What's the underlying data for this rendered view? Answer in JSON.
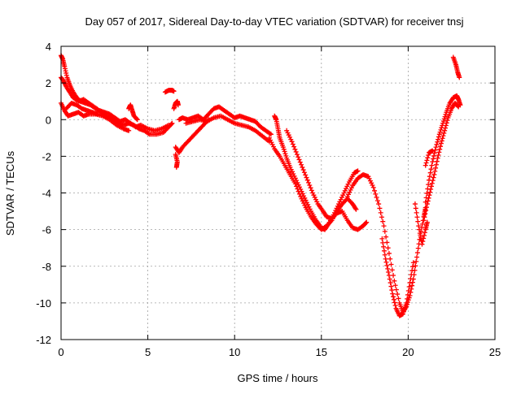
{
  "chart_data": {
    "type": "scatter",
    "title": "Day 057 of 2017, Sidereal Day-to-day VTEC variation (SDTVAR) for receiver tnsj",
    "xlabel": "GPS time / hours",
    "ylabel": "SDTVAR / TECUs",
    "xlim": [
      0,
      25
    ],
    "ylim": [
      -12,
      4
    ],
    "x_ticks": [
      0,
      5,
      10,
      15,
      20,
      25
    ],
    "y_ticks": [
      -12,
      -10,
      -8,
      -6,
      -4,
      -2,
      0,
      2,
      4
    ],
    "grid": true,
    "legend": "none",
    "marker": "+",
    "series_color": "#ff0000",
    "series": [
      {
        "tracks": [
          [
            [
              0.0,
              3.5
            ],
            [
              0.1,
              3.3
            ],
            [
              0.2,
              2.9
            ],
            [
              0.35,
              2.3
            ],
            [
              0.5,
              1.9
            ],
            [
              0.7,
              1.5
            ],
            [
              0.9,
              1.2
            ],
            [
              1.1,
              1.0
            ],
            [
              1.4,
              0.9
            ],
            [
              1.7,
              0.8
            ],
            [
              2.0,
              0.6
            ],
            [
              2.3,
              0.4
            ],
            [
              2.6,
              0.2
            ],
            [
              3.0,
              0.0
            ],
            [
              3.3,
              -0.2
            ],
            [
              3.6,
              -0.3
            ],
            [
              3.9,
              -0.2
            ],
            [
              4.2,
              -0.3
            ],
            [
              4.5,
              -0.5
            ],
            [
              4.8,
              -0.6
            ],
            [
              5.1,
              -0.8
            ],
            [
              5.5,
              -0.8
            ],
            [
              5.9,
              -0.7
            ],
            [
              6.2,
              -0.4
            ],
            [
              6.4,
              -0.2
            ]
          ],
          [
            [
              0.0,
              2.3
            ],
            [
              0.15,
              2.1
            ],
            [
              0.3,
              1.8
            ],
            [
              0.5,
              1.5
            ],
            [
              0.7,
              1.2
            ],
            [
              1.0,
              1.0
            ],
            [
              1.3,
              1.1
            ],
            [
              1.6,
              0.9
            ],
            [
              1.9,
              0.7
            ],
            [
              2.2,
              0.5
            ],
            [
              2.5,
              0.4
            ],
            [
              2.8,
              0.3
            ],
            [
              3.1,
              0.1
            ],
            [
              3.4,
              -0.1
            ],
            [
              3.7,
              0.0
            ],
            [
              4.0,
              -0.2
            ],
            [
              4.3,
              -0.4
            ],
            [
              4.6,
              -0.3
            ],
            [
              5.0,
              -0.5
            ],
            [
              5.4,
              -0.6
            ],
            [
              5.8,
              -0.5
            ],
            [
              6.2,
              -0.3
            ]
          ],
          [
            [
              0.0,
              0.9
            ],
            [
              0.2,
              0.5
            ],
            [
              0.4,
              0.2
            ],
            [
              0.7,
              0.3
            ],
            [
              1.0,
              0.4
            ],
            [
              1.3,
              0.2
            ],
            [
              1.6,
              0.3
            ],
            [
              2.0,
              0.3
            ],
            [
              2.4,
              0.2
            ],
            [
              2.8,
              0.0
            ],
            [
              3.2,
              -0.3
            ],
            [
              3.6,
              -0.5
            ],
            [
              3.9,
              -0.6
            ]
          ],
          [
            [
              0.3,
              0.6
            ],
            [
              0.6,
              0.9
            ],
            [
              0.9,
              0.8
            ],
            [
              1.2,
              0.6
            ],
            [
              1.5,
              0.5
            ],
            [
              1.8,
              0.4
            ],
            [
              2.1,
              0.3
            ]
          ],
          [
            [
              3.9,
              0.6
            ],
            [
              4.0,
              0.8
            ],
            [
              4.1,
              0.5
            ],
            [
              4.2,
              0.2
            ],
            [
              4.4,
              0.0
            ]
          ],
          [
            [
              6.0,
              1.5
            ],
            [
              6.2,
              1.6
            ],
            [
              6.4,
              1.6
            ],
            [
              6.5,
              1.55
            ]
          ],
          [
            [
              6.5,
              0.6
            ],
            [
              6.6,
              0.9
            ],
            [
              6.7,
              1.0
            ],
            [
              6.75,
              0.8
            ]
          ],
          [
            [
              6.6,
              -1.5
            ],
            [
              6.8,
              -1.8
            ],
            [
              7.0,
              -1.5
            ],
            [
              7.3,
              -1.2
            ],
            [
              7.6,
              -0.9
            ],
            [
              7.9,
              -0.6
            ],
            [
              8.2,
              -0.3
            ],
            [
              8.5,
              0.0
            ]
          ],
          [
            [
              6.6,
              -1.9
            ],
            [
              6.7,
              -2.3
            ],
            [
              6.65,
              -2.6
            ]
          ],
          [
            [
              6.8,
              0.0
            ],
            [
              7.0,
              0.1
            ],
            [
              7.3,
              0.0
            ],
            [
              7.6,
              0.1
            ],
            [
              7.9,
              0.2
            ],
            [
              8.2,
              0.0
            ],
            [
              8.5,
              0.3
            ],
            [
              8.8,
              0.6
            ],
            [
              9.1,
              0.7
            ],
            [
              9.4,
              0.5
            ],
            [
              9.7,
              0.3
            ],
            [
              10.0,
              0.1
            ],
            [
              10.3,
              0.2
            ],
            [
              10.6,
              0.1
            ],
            [
              10.9,
              0.0
            ],
            [
              11.2,
              -0.1
            ],
            [
              11.5,
              -0.4
            ],
            [
              11.8,
              -0.6
            ],
            [
              12.1,
              -0.8
            ]
          ],
          [
            [
              7.2,
              -0.2
            ],
            [
              7.6,
              -0.1
            ],
            [
              8.0,
              0.0
            ],
            [
              8.4,
              -0.1
            ],
            [
              8.8,
              0.1
            ],
            [
              9.2,
              0.2
            ],
            [
              9.6,
              0.0
            ],
            [
              10.0,
              -0.2
            ],
            [
              10.4,
              -0.3
            ],
            [
              10.8,
              -0.4
            ],
            [
              11.2,
              -0.6
            ],
            [
              11.6,
              -0.9
            ],
            [
              12.0,
              -1.2
            ]
          ],
          [
            [
              12.3,
              0.2
            ],
            [
              12.4,
              0.0
            ],
            [
              12.5,
              -0.5
            ],
            [
              12.6,
              -1.0
            ],
            [
              12.8,
              -1.5
            ],
            [
              13.0,
              -2.1
            ],
            [
              13.2,
              -2.6
            ],
            [
              13.5,
              -3.2
            ],
            [
              13.8,
              -3.8
            ],
            [
              14.1,
              -4.4
            ],
            [
              14.4,
              -5.0
            ],
            [
              14.7,
              -5.5
            ],
            [
              15.0,
              -5.9
            ],
            [
              15.2,
              -6.0
            ],
            [
              15.4,
              -5.7
            ],
            [
              15.7,
              -5.2
            ],
            [
              16.0,
              -4.6
            ],
            [
              16.3,
              -4.0
            ],
            [
              16.6,
              -3.4
            ],
            [
              16.9,
              -2.9
            ],
            [
              17.1,
              -2.8
            ]
          ],
          [
            [
              12.0,
              -1.0
            ],
            [
              12.3,
              -1.6
            ],
            [
              12.6,
              -2.0
            ],
            [
              12.9,
              -2.5
            ],
            [
              13.2,
              -3.0
            ],
            [
              13.5,
              -3.5
            ],
            [
              13.8,
              -4.2
            ],
            [
              14.1,
              -4.8
            ],
            [
              14.4,
              -5.3
            ],
            [
              14.7,
              -5.7
            ],
            [
              15.0,
              -6.0
            ],
            [
              15.3,
              -5.8
            ],
            [
              15.6,
              -5.5
            ],
            [
              15.9,
              -5.0
            ],
            [
              16.2,
              -4.6
            ],
            [
              16.5,
              -4.3
            ],
            [
              16.8,
              -4.6
            ],
            [
              17.0,
              -4.9
            ]
          ],
          [
            [
              13.0,
              -0.6
            ],
            [
              13.3,
              -1.2
            ],
            [
              13.6,
              -1.9
            ],
            [
              13.9,
              -2.6
            ],
            [
              14.2,
              -3.3
            ],
            [
              14.5,
              -4.0
            ],
            [
              14.8,
              -4.6
            ],
            [
              15.1,
              -5.0
            ],
            [
              15.3,
              -5.3
            ],
            [
              15.6,
              -5.4
            ],
            [
              15.9,
              -5.1
            ],
            [
              16.2,
              -5.0
            ],
            [
              16.5,
              -5.5
            ],
            [
              16.8,
              -5.9
            ],
            [
              17.1,
              -6.0
            ],
            [
              17.4,
              -5.8
            ],
            [
              17.6,
              -5.6
            ]
          ],
          [
            [
              16.5,
              -4.2
            ],
            [
              16.8,
              -3.6
            ],
            [
              17.1,
              -3.2
            ],
            [
              17.4,
              -3.0
            ],
            [
              17.7,
              -3.1
            ],
            [
              18.0,
              -3.7
            ],
            [
              18.3,
              -4.6
            ],
            [
              18.6,
              -5.8
            ],
            [
              18.9,
              -7.3
            ],
            [
              19.2,
              -8.8
            ],
            [
              19.5,
              -10.0
            ],
            [
              19.7,
              -10.5
            ],
            [
              19.9,
              -10.2
            ],
            [
              20.1,
              -9.6
            ],
            [
              20.3,
              -8.7
            ],
            [
              20.5,
              -7.5
            ],
            [
              20.7,
              -6.3
            ],
            [
              20.9,
              -5.3
            ],
            [
              21.0,
              -4.8
            ]
          ],
          [
            [
              18.5,
              -6.5
            ],
            [
              18.7,
              -7.6
            ],
            [
              18.9,
              -8.5
            ],
            [
              19.1,
              -9.5
            ],
            [
              19.3,
              -10.3
            ],
            [
              19.5,
              -10.7
            ],
            [
              19.7,
              -10.6
            ],
            [
              19.9,
              -10.0
            ],
            [
              20.1,
              -8.9
            ],
            [
              20.3,
              -7.8
            ]
          ],
          [
            [
              20.4,
              -4.6
            ],
            [
              20.6,
              -5.8
            ],
            [
              20.8,
              -6.8
            ],
            [
              21.0,
              -6.0
            ],
            [
              21.1,
              -5.6
            ]
          ],
          [
            [
              21.0,
              -4.5
            ],
            [
              21.2,
              -3.3
            ],
            [
              21.4,
              -2.3
            ],
            [
              21.6,
              -1.5
            ],
            [
              21.8,
              -0.8
            ],
            [
              22.0,
              -0.2
            ],
            [
              22.2,
              0.4
            ],
            [
              22.4,
              0.9
            ],
            [
              22.6,
              1.2
            ],
            [
              22.8,
              1.3
            ],
            [
              22.9,
              1.1
            ],
            [
              23.0,
              0.8
            ]
          ],
          [
            [
              20.9,
              -5.5
            ],
            [
              21.1,
              -4.6
            ],
            [
              21.3,
              -3.8
            ],
            [
              21.5,
              -3.0
            ],
            [
              21.7,
              -2.1
            ],
            [
              21.9,
              -1.3
            ],
            [
              22.1,
              -0.6
            ],
            [
              22.3,
              0.1
            ],
            [
              22.5,
              0.6
            ],
            [
              22.7,
              0.9
            ],
            [
              22.9,
              0.7
            ]
          ],
          [
            [
              21.0,
              -2.5
            ],
            [
              21.2,
              -1.8
            ],
            [
              21.4,
              -1.7
            ]
          ],
          [
            [
              22.6,
              3.4
            ],
            [
              22.75,
              3.0
            ],
            [
              22.85,
              2.6
            ],
            [
              22.95,
              2.3
            ]
          ]
        ]
      }
    ]
  }
}
